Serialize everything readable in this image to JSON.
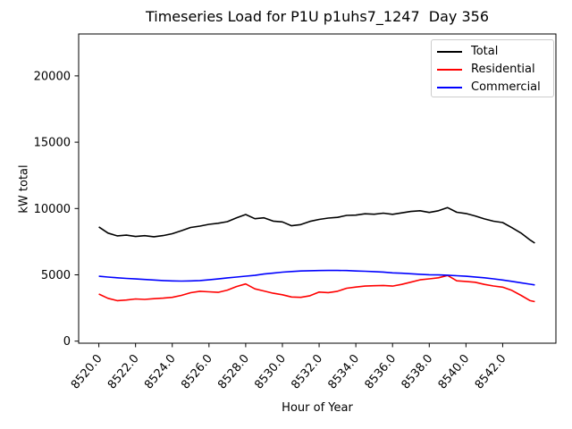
{
  "chart_data": {
    "type": "line",
    "title": "Timeseries Load for P1U p1uhs7_1247  Day 356",
    "xlabel": "Hour of Year",
    "ylabel": "kW total",
    "grid": false,
    "legend_position": "upper right",
    "xlim": [
      8518.9,
      8544.9
    ],
    "ylim": [
      -155,
      23160
    ],
    "xticks": [
      8520,
      8522,
      8524,
      8526,
      8528,
      8530,
      8532,
      8534,
      8536,
      8538,
      8540,
      8542
    ],
    "xtick_labels": [
      "8520.0",
      "8522.0",
      "8524.0",
      "8526.0",
      "8528.0",
      "8530.0",
      "8532.0",
      "8534.0",
      "8536.0",
      "8538.0",
      "8540.0",
      "8542.0"
    ],
    "yticks": [
      0,
      5000,
      10000,
      15000,
      20000
    ],
    "ytick_labels": [
      "0",
      "5000",
      "10000",
      "15000",
      "20000"
    ],
    "x": [
      8520.0,
      8520.5,
      8521.0,
      8521.5,
      8522.0,
      8522.5,
      8523.0,
      8523.5,
      8524.0,
      8524.5,
      8525.0,
      8525.5,
      8526.0,
      8526.5,
      8527.0,
      8527.5,
      8528.0,
      8528.5,
      8529.0,
      8529.5,
      8530.0,
      8530.5,
      8531.0,
      8531.5,
      8532.0,
      8532.5,
      8533.0,
      8533.5,
      8534.0,
      8534.5,
      8535.0,
      8535.5,
      8536.0,
      8536.5,
      8537.0,
      8537.5,
      8538.0,
      8538.5,
      8539.0,
      8539.5,
      8540.0,
      8540.5,
      8541.0,
      8541.5,
      8542.0,
      8542.5,
      8543.0,
      8543.5,
      8543.75
    ],
    "series": [
      {
        "name": "Total",
        "color": "#000000",
        "values": [
          8610,
          8150,
          7940,
          7990,
          7890,
          7950,
          7870,
          7960,
          8100,
          8330,
          8570,
          8670,
          8810,
          8890,
          9010,
          9290,
          9550,
          9230,
          9300,
          9050,
          8990,
          8700,
          8790,
          9030,
          9180,
          9280,
          9330,
          9480,
          9500,
          9600,
          9570,
          9650,
          9560,
          9670,
          9780,
          9830,
          9700,
          9830,
          10070,
          9720,
          9620,
          9440,
          9220,
          9040,
          8940,
          8560,
          8150,
          7620,
          7390
        ]
      },
      {
        "name": "Residential",
        "color": "#ff0000",
        "values": [
          3550,
          3230,
          3050,
          3100,
          3180,
          3150,
          3200,
          3240,
          3300,
          3450,
          3650,
          3760,
          3720,
          3680,
          3850,
          4120,
          4310,
          3940,
          3780,
          3610,
          3500,
          3330,
          3300,
          3420,
          3700,
          3660,
          3760,
          3990,
          4080,
          4150,
          4180,
          4200,
          4150,
          4280,
          4450,
          4620,
          4700,
          4780,
          4950,
          4550,
          4500,
          4440,
          4280,
          4160,
          4070,
          3830,
          3450,
          3050,
          2980
        ]
      },
      {
        "name": "Commercial",
        "color": "#0000ff",
        "values": [
          4890,
          4830,
          4780,
          4730,
          4690,
          4650,
          4610,
          4570,
          4540,
          4530,
          4540,
          4570,
          4620,
          4690,
          4770,
          4830,
          4900,
          4960,
          5060,
          5130,
          5200,
          5250,
          5290,
          5310,
          5320,
          5330,
          5330,
          5320,
          5290,
          5270,
          5240,
          5210,
          5150,
          5120,
          5080,
          5040,
          5010,
          4990,
          4970,
          4930,
          4890,
          4840,
          4780,
          4700,
          4610,
          4510,
          4400,
          4290,
          4240
        ]
      }
    ]
  }
}
